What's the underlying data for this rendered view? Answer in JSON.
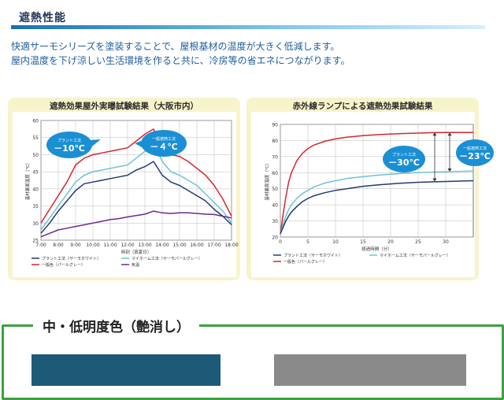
{
  "header": {
    "section_title": "遮熱性能",
    "intro_line1": "快適サーモシリーズを塗装することで、屋根基材の温度が大きく低減します。",
    "intro_line2": "屋内温度を下げ涼しい生活環境を作ると共に、冷房等の省エネにつながります。"
  },
  "bottom": {
    "label": "中・低明度色（艶消し）"
  },
  "colors": {
    "red": "#d7262e",
    "teal": "#6ec3d2",
    "navy": "#1f3b78",
    "purple": "#6c2a8c",
    "green": "#3aa23f",
    "swatch_left": "#1d5a78",
    "swatch_right": "#8a8a8a"
  },
  "chart_data": [
    {
      "type": "line",
      "title": "遮熱効果屋外実曝試験結果（大阪市内）",
      "xlabel": "時刻（真夏日）",
      "ylabel": "基材裏面温度（℃）",
      "x_ticks": [
        "7:00",
        "8:00",
        "9:00",
        "10:00",
        "11:00",
        "12:00",
        "13:00",
        "14:00",
        "15:00",
        "16:00",
        "17:00",
        "18:00"
      ],
      "ylim": [
        25,
        60
      ],
      "y_ticks": [
        "25",
        "30",
        "35",
        "40",
        "45",
        "50",
        "55",
        "60"
      ],
      "grid": true,
      "x": [
        7,
        7.5,
        8,
        8.5,
        9,
        9.5,
        10,
        10.5,
        11,
        11.5,
        12,
        12.5,
        13,
        13.5,
        14,
        14.5,
        15,
        15.5,
        16,
        16.5,
        17,
        17.5,
        18
      ],
      "series": [
        {
          "name": "一般色（パールグレー）",
          "color_key": "red",
          "values": [
            30,
            34,
            38,
            42,
            47,
            49,
            50,
            50.5,
            51,
            51.5,
            52,
            54,
            56,
            57.5,
            52,
            50,
            49.5,
            48,
            46,
            44,
            41,
            37,
            32
          ]
        },
        {
          "name": "マイホーム工法（サーモパールグレー）",
          "color_key": "teal",
          "values": [
            28,
            31.5,
            35,
            38.5,
            42,
            44,
            45,
            45.5,
            46,
            46.5,
            47,
            49,
            51,
            53.5,
            48,
            45,
            44,
            42.5,
            41,
            38.5,
            36,
            33.5,
            30
          ]
        },
        {
          "name": "プラント工法（サーモホワイト）",
          "color_key": "navy",
          "values": [
            27,
            30,
            33.5,
            36.5,
            39.5,
            41.5,
            42,
            42.5,
            43,
            43.5,
            44,
            45.5,
            46.5,
            48,
            44,
            42,
            41,
            39.5,
            38,
            36.5,
            34,
            32,
            29.5
          ]
        },
        {
          "name": "気温",
          "color_key": "purple",
          "values": [
            26,
            27,
            28,
            28.5,
            29,
            29.5,
            30,
            30.5,
            31,
            31.3,
            31.8,
            32.2,
            32.6,
            33.5,
            33,
            32.8,
            33,
            33,
            32.8,
            32.6,
            32.5,
            32,
            31.5
          ]
        }
      ],
      "annotations": [
        {
          "label": "プラント工法",
          "value": "－10℃"
        },
        {
          "label": "一般遮熱工法",
          "value": "－４℃"
        }
      ]
    },
    {
      "type": "line",
      "title": "赤外線ランプによる遮熱効果試験結果",
      "xlabel": "経過時間（分）",
      "ylabel": "基材裏面温度（℃）",
      "x_ticks": [
        "0",
        "5",
        "10",
        "15",
        "20",
        "25",
        "30"
      ],
      "xlim": [
        0,
        35
      ],
      "ylim": [
        20,
        90
      ],
      "y_ticks": [
        "20",
        "30",
        "40",
        "50",
        "60",
        "70",
        "80",
        "90"
      ],
      "grid": true,
      "x": [
        0,
        0.5,
        1,
        1.5,
        2,
        3,
        4,
        5,
        6,
        8,
        10,
        12,
        15,
        18,
        20,
        22,
        25,
        28,
        30,
        32,
        35
      ],
      "series": [
        {
          "name": "一般色（パールグレー）",
          "color_key": "red",
          "values": [
            22,
            34,
            45,
            54,
            60,
            67.5,
            72,
            75,
            77,
            79.5,
            81,
            82,
            83,
            83.7,
            84,
            84.3,
            84.6,
            84.9,
            85,
            85,
            85
          ]
        },
        {
          "name": "マイホーム工法（サーモパールグレー）",
          "color_key": "teal",
          "values": [
            22,
            28,
            33,
            37,
            40,
            44,
            47,
            49,
            51,
            53.5,
            55,
            56.3,
            57.5,
            58.5,
            59,
            59.5,
            60,
            60.4,
            60.6,
            60.8,
            61
          ]
        },
        {
          "name": "プラント工法（サーモホワイト）",
          "color_key": "navy",
          "values": [
            22,
            26,
            30,
            33,
            35.5,
            39,
            42,
            44,
            45.5,
            47.5,
            49,
            50,
            51.5,
            52.5,
            53,
            53.5,
            54,
            54.3,
            54.5,
            54.7,
            55
          ]
        }
      ],
      "annotations": [
        {
          "label": "プラント工法",
          "value": "－30℃"
        },
        {
          "label": "一般遮熱工法",
          "value": "－23℃"
        }
      ]
    }
  ]
}
